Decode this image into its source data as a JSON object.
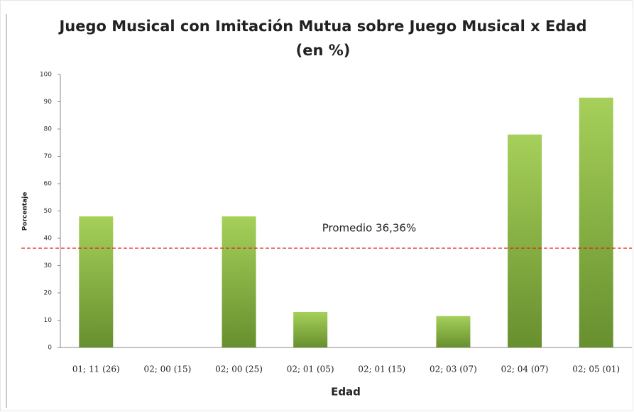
{
  "chart_data": {
    "type": "bar",
    "title": [
      "Juego Musical con Imitación Mutua sobre Juego Musical x Edad",
      "(en %)"
    ],
    "x_label": "Edad",
    "y_label": "Porcentaje",
    "categories": [
      "01; 11 (26)",
      "02; 00 (15)",
      "02; 00 (25)",
      "02; 01 (05)",
      "02; 01 (15)",
      "02; 03 (07)",
      "02; 04 (07)",
      "02; 05 (01)"
    ],
    "values": [
      48,
      0,
      48,
      13,
      0,
      11.5,
      78,
      91.5
    ],
    "gradient": [
      "#a6d05a",
      "#678f2e"
    ],
    "ylim": [
      0,
      100
    ],
    "yticks": [
      0,
      10,
      20,
      30,
      40,
      50,
      60,
      70,
      80,
      90,
      100
    ],
    "reference_line": {
      "value": 36.36,
      "label": "Promedio 36,36%",
      "color": "#e02020"
    }
  }
}
